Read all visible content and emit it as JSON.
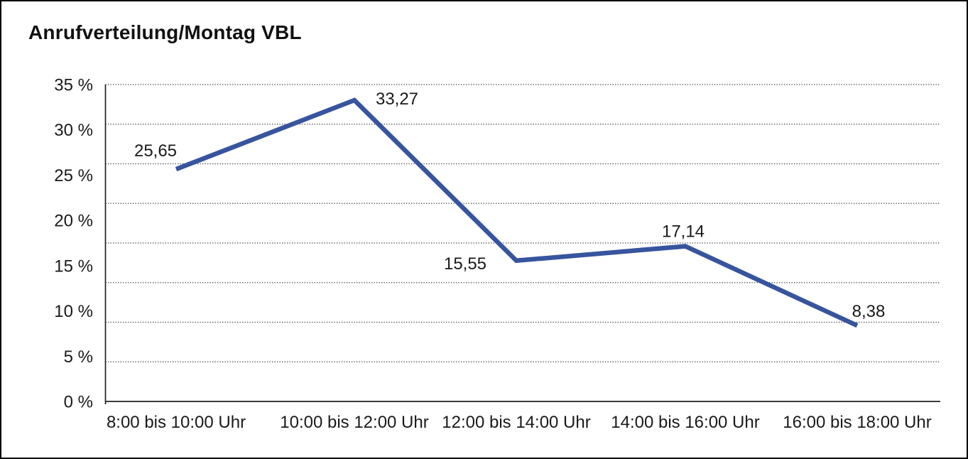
{
  "page": {
    "title": "Anrufverteilung/Montag VBL"
  },
  "chart_data": {
    "type": "line",
    "title": "Anrufverteilung/Montag VBL",
    "categories": [
      "8:00 bis 10:00 Uhr",
      "10:00 bis 12:00 Uhr",
      "12:00 bis 14:00 Uhr",
      "14:00 bis 16:00 Uhr",
      "16:00 bis 18:00 Uhr"
    ],
    "series": [
      {
        "name": "Anrufverteilung Montag VBL",
        "values": [
          25.65,
          33.27,
          15.55,
          17.14,
          8.38
        ],
        "point_labels": [
          "25,65",
          "33,27",
          "15,55",
          "17,14",
          "8,38"
        ]
      }
    ],
    "xlabel": "",
    "ylabel": "",
    "y_tick_labels": [
      "35 %",
      "30 %",
      "25 %",
      "20 %",
      "15 %",
      "10 %",
      "5 %",
      "0 %"
    ],
    "ylim": [
      0,
      35
    ],
    "grid": "horizontal-dotted",
    "gridline_count": 8,
    "legend": "none",
    "line_color": "#37549E",
    "axis_color": "#222222",
    "grid_color": "#3c3c3c",
    "text_color": "#1a1a1a"
  }
}
